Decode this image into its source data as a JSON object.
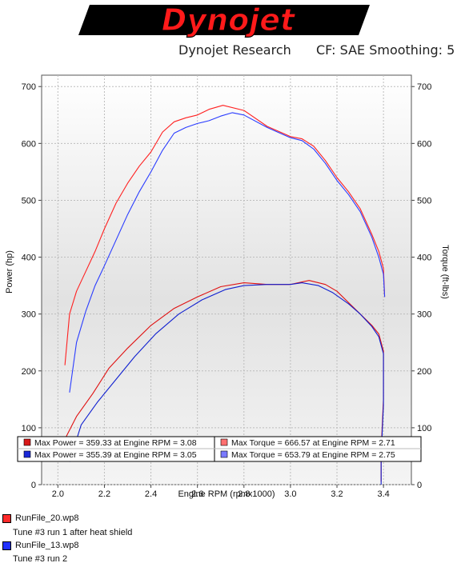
{
  "brand": {
    "logo_text": "Dynojet"
  },
  "header": {
    "left": "Dynojet Research",
    "right": "CF: SAE Smoothing: 5"
  },
  "files": [
    {
      "name": "RunFile_20.wp8",
      "note": "Tune #3 run 1 after heat shield",
      "color": "#ff2a2a"
    },
    {
      "name": "RunFile_13.wp8",
      "note": "Tune #3 run 2",
      "color": "#2030ff"
    }
  ],
  "chart_data": {
    "type": "line",
    "xlabel": "Engine RPM (rpmx1000)",
    "ylabel": "Power (hp)",
    "y2label": "Torque (ft-lbs)",
    "xlim": [
      1.93,
      3.52
    ],
    "ylim": [
      0,
      720
    ],
    "x_ticks": [
      2.0,
      2.2,
      2.4,
      2.6,
      2.8,
      3.0,
      3.2,
      3.4
    ],
    "x_tick_labels": [
      "2.0",
      "2.2",
      "2.4",
      "2.6",
      "2.8",
      "3.0",
      "3.2",
      "3.4"
    ],
    "y_ticks": [
      0,
      100,
      200,
      300,
      400,
      500,
      600,
      700
    ],
    "y_tick_labels": [
      "0",
      "100",
      "200",
      "300",
      "400",
      "500",
      "600",
      "700"
    ],
    "grid": true,
    "series": [
      {
        "color": "#ff2020",
        "kind": "torque",
        "x": [
          2.03,
          2.05,
          2.08,
          2.12,
          2.16,
          2.2,
          2.25,
          2.3,
          2.35,
          2.4,
          2.45,
          2.5,
          2.55,
          2.6,
          2.65,
          2.71,
          2.8,
          2.9,
          3.0,
          3.05,
          3.1,
          3.15,
          3.2,
          3.25,
          3.3,
          3.35,
          3.38,
          3.4,
          3.405
        ],
        "y": [
          210,
          300,
          340,
          375,
          410,
          450,
          495,
          530,
          560,
          585,
          620,
          638,
          645,
          650,
          660,
          667,
          658,
          630,
          612,
          608,
          595,
          570,
          540,
          515,
          485,
          440,
          410,
          380,
          330
        ]
      },
      {
        "color": "#2a3cff",
        "kind": "torque",
        "x": [
          2.05,
          2.08,
          2.12,
          2.16,
          2.2,
          2.25,
          2.3,
          2.35,
          2.4,
          2.45,
          2.5,
          2.55,
          2.6,
          2.65,
          2.7,
          2.75,
          2.8,
          2.9,
          3.0,
          3.05,
          3.1,
          3.15,
          3.2,
          3.25,
          3.3,
          3.35,
          3.38,
          3.4,
          3.405
        ],
        "y": [
          162,
          250,
          305,
          350,
          385,
          430,
          475,
          515,
          550,
          588,
          618,
          628,
          635,
          640,
          648,
          654,
          650,
          628,
          610,
          605,
          590,
          565,
          535,
          510,
          480,
          435,
          400,
          370,
          330
        ]
      },
      {
        "color": "#e01010",
        "kind": "power",
        "x": [
          2.03,
          2.08,
          2.15,
          2.22,
          2.3,
          2.4,
          2.5,
          2.6,
          2.7,
          2.8,
          2.9,
          3.0,
          3.08,
          3.15,
          3.2,
          3.25,
          3.3,
          3.35,
          3.38,
          3.4,
          3.4,
          3.39,
          3.39
        ],
        "y": [
          80,
          120,
          160,
          205,
          240,
          280,
          310,
          330,
          348,
          355,
          352,
          352,
          359,
          352,
          340,
          320,
          300,
          280,
          265,
          235,
          150,
          60,
          5
        ]
      },
      {
        "color": "#1020d0",
        "kind": "power",
        "x": [
          2.05,
          2.1,
          2.17,
          2.25,
          2.33,
          2.42,
          2.52,
          2.62,
          2.72,
          2.8,
          2.9,
          3.0,
          3.05,
          3.12,
          3.18,
          3.25,
          3.3,
          3.35,
          3.38,
          3.4,
          3.4,
          3.39,
          3.39
        ],
        "y": [
          40,
          105,
          145,
          185,
          225,
          265,
          300,
          325,
          343,
          350,
          352,
          352,
          355,
          350,
          338,
          318,
          300,
          278,
          260,
          230,
          140,
          50,
          0
        ]
      }
    ],
    "legend": {
      "position": "bottom",
      "entries": [
        {
          "text": "Max Power = 359.33 at Engine RPM = 3.08",
          "color": "#d81818"
        },
        {
          "text": "Max Torque = 666.57 at Engine RPM = 2.71",
          "color": "#ff6f6f"
        },
        {
          "text": "Max Power = 355.39 at Engine RPM = 3.05",
          "color": "#1a28d8"
        },
        {
          "text": "Max Torque = 653.79 at Engine RPM = 2.75",
          "color": "#7a7aff"
        }
      ]
    }
  }
}
